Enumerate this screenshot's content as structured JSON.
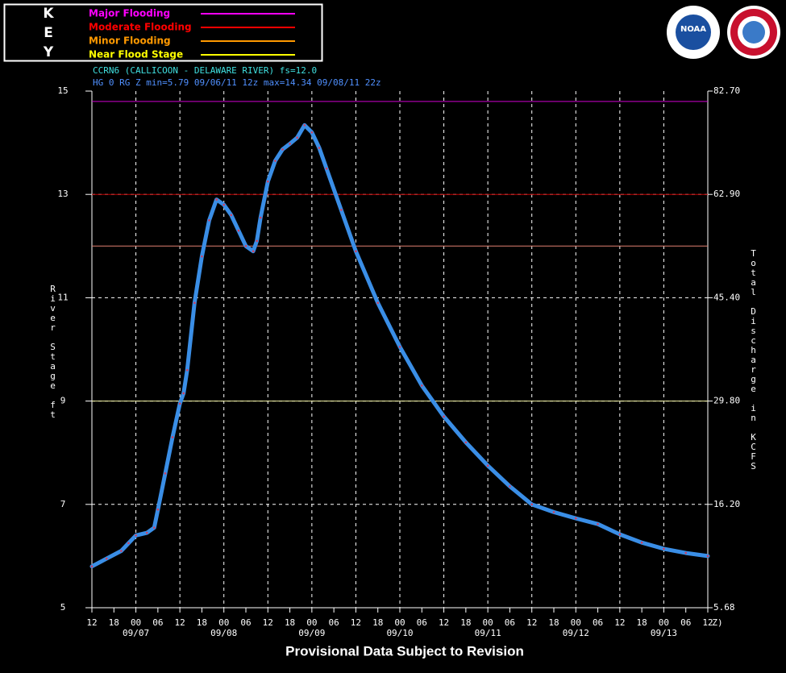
{
  "chart_data": {
    "type": "line",
    "key": {
      "letters": [
        "K",
        "E",
        "Y"
      ],
      "entries": [
        {
          "label": "Major Flooding",
          "color": "#ff00ff"
        },
        {
          "label": "Moderate Flooding",
          "color": "#ff0000"
        },
        {
          "label": "Minor Flooding",
          "color": "#ff9900"
        },
        {
          "label": "Near Flood Stage",
          "color": "#ffff00"
        }
      ]
    },
    "logos": [
      "NOAA"
    ],
    "title": "CCRN6 (CALLICOON - DELAWARE RIVER) fs=12.0",
    "subtitle": "HG 0 RG Z min=5.79 09/06/11 12z max=14.34 09/08/11 22z",
    "y_label": "River Stage ft",
    "y2_label": "Total Discharge in KCFS",
    "footer": "Provisional Data Subject to Revision",
    "x_unit": "Z)",
    "thresholds": [
      {
        "value": 14.8,
        "color": "#d000d0"
      },
      {
        "value": 13,
        "color": "#c00000"
      },
      {
        "value": 12,
        "color": "#e08070"
      },
      {
        "value": 9,
        "color": "#f0f0a0"
      }
    ],
    "ylim": [
      5,
      15
    ],
    "yticks": [
      5,
      7,
      9,
      11,
      13,
      15
    ],
    "rating_ticks": [
      {
        "stage": 5,
        "label": "5.68"
      },
      {
        "stage": 7,
        "label": "16.20"
      },
      {
        "stage": 9,
        "label": "29.80"
      },
      {
        "stage": 11,
        "label": "45.40"
      },
      {
        "stage": 13,
        "label": "62.90"
      },
      {
        "stage": 15,
        "label": "82.70"
      }
    ],
    "xlim": [
      "2011-09-06T12:00Z",
      "2011-09-13T12:00Z"
    ],
    "xticks": [
      {
        "value": "2011-09-06T12:00Z",
        "label": "12"
      },
      {
        "value": "2011-09-06T18:00Z",
        "label": "18"
      },
      {
        "value": "2011-09-07T00:00Z",
        "label": "00"
      },
      {
        "value": "2011-09-07T06:00Z",
        "label": "06"
      },
      {
        "value": "2011-09-07T12:00Z",
        "label": "12"
      },
      {
        "value": "2011-09-07T18:00Z",
        "label": "18"
      },
      {
        "value": "2011-09-08T00:00Z",
        "label": "00"
      },
      {
        "value": "2011-09-08T06:00Z",
        "label": "06"
      },
      {
        "value": "2011-09-08T12:00Z",
        "label": "12"
      },
      {
        "value": "2011-09-08T18:00Z",
        "label": "18"
      },
      {
        "value": "2011-09-09T00:00Z",
        "label": "00"
      },
      {
        "value": "2011-09-09T06:00Z",
        "label": "06"
      },
      {
        "value": "2011-09-09T12:00Z",
        "label": "12"
      },
      {
        "value": "2011-09-09T18:00Z",
        "label": "18"
      },
      {
        "value": "2011-09-10T00:00Z",
        "label": "00"
      },
      {
        "value": "2011-09-10T06:00Z",
        "label": "06"
      },
      {
        "value": "2011-09-10T12:00Z",
        "label": "12"
      },
      {
        "value": "2011-09-10T18:00Z",
        "label": "18"
      },
      {
        "value": "2011-09-11T00:00Z",
        "label": "00"
      },
      {
        "value": "2011-09-11T06:00Z",
        "label": "06"
      },
      {
        "value": "2011-09-11T12:00Z",
        "label": "12"
      },
      {
        "value": "2011-09-11T18:00Z",
        "label": "18"
      },
      {
        "value": "2011-09-12T00:00Z",
        "label": "00"
      },
      {
        "value": "2011-09-12T06:00Z",
        "label": "06"
      },
      {
        "value": "2011-09-12T12:00Z",
        "label": "12"
      },
      {
        "value": "2011-09-12T18:00Z",
        "label": "18"
      },
      {
        "value": "2011-09-13T00:00Z",
        "label": "00"
      },
      {
        "value": "2011-09-13T06:00Z",
        "label": "06"
      },
      {
        "value": "2011-09-13T12:00Z",
        "label": "12"
      }
    ],
    "date_labels": [
      {
        "value": "2011-09-07T00:00Z",
        "label": "09/07"
      },
      {
        "value": "2011-09-08T00:00Z",
        "label": "09/08"
      },
      {
        "value": "2011-09-09T00:00Z",
        "label": "09/09"
      },
      {
        "value": "2011-09-10T00:00Z",
        "label": "09/10"
      },
      {
        "value": "2011-09-11T00:00Z",
        "label": "09/11"
      },
      {
        "value": "2011-09-12T00:00Z",
        "label": "09/12"
      },
      {
        "value": "2011-09-13T00:00Z",
        "label": "09/13"
      }
    ],
    "grid": true,
    "x": [
      "2011-09-06T12:00Z",
      "2011-09-06T16:00Z",
      "2011-09-06T20:00Z",
      "2011-09-06T22:00Z",
      "2011-09-07T00:00Z",
      "2011-09-07T03:00Z",
      "2011-09-07T05:00Z",
      "2011-09-07T06:00Z",
      "2011-09-07T08:00Z",
      "2011-09-07T10:00Z",
      "2011-09-07T12:00Z",
      "2011-09-07T13:00Z",
      "2011-09-07T14:00Z",
      "2011-09-07T16:00Z",
      "2011-09-07T18:00Z",
      "2011-09-07T20:00Z",
      "2011-09-07T22:00Z",
      "2011-09-08T00:00Z",
      "2011-09-08T02:00Z",
      "2011-09-08T04:00Z",
      "2011-09-08T06:00Z",
      "2011-09-08T08:00Z",
      "2011-09-08T09:00Z",
      "2011-09-08T10:00Z",
      "2011-09-08T12:00Z",
      "2011-09-08T14:00Z",
      "2011-09-08T16:00Z",
      "2011-09-08T18:00Z",
      "2011-09-08T20:00Z",
      "2011-09-08T22:00Z",
      "2011-09-09T00:00Z",
      "2011-09-09T02:00Z",
      "2011-09-09T04:00Z",
      "2011-09-09T08:00Z",
      "2011-09-09T12:00Z",
      "2011-09-09T18:00Z",
      "2011-09-10T00:00Z",
      "2011-09-10T06:00Z",
      "2011-09-10T12:00Z",
      "2011-09-10T18:00Z",
      "2011-09-11T00:00Z",
      "2011-09-11T06:00Z",
      "2011-09-11T12:00Z",
      "2011-09-11T18:00Z",
      "2011-09-12T00:00Z",
      "2011-09-12T06:00Z",
      "2011-09-12T12:00Z",
      "2011-09-12T18:00Z",
      "2011-09-13T00:00Z",
      "2011-09-13T06:00Z",
      "2011-09-13T12:00Z"
    ],
    "series": [
      {
        "color": "#3a8ee6",
        "marker_color": "#d04060",
        "values": [
          5.8,
          5.95,
          6.1,
          6.25,
          6.4,
          6.45,
          6.55,
          6.9,
          7.6,
          8.3,
          8.95,
          9.15,
          9.6,
          10.9,
          11.8,
          12.5,
          12.9,
          12.8,
          12.6,
          12.3,
          12.0,
          11.9,
          12.1,
          12.55,
          13.25,
          13.65,
          13.87,
          13.98,
          14.1,
          14.34,
          14.2,
          13.9,
          13.5,
          12.7,
          11.9,
          10.9,
          10.05,
          9.3,
          8.7,
          8.2,
          7.75,
          7.35,
          7.0,
          6.85,
          6.73,
          6.62,
          6.42,
          6.26,
          6.14,
          6.06,
          6.0
        ]
      }
    ]
  }
}
